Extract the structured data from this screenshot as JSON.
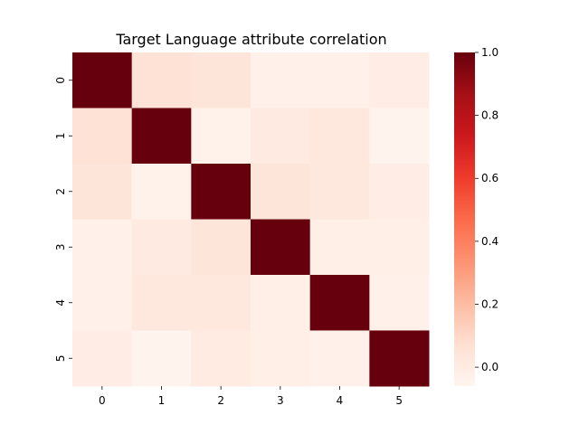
{
  "chart_data": {
    "type": "heatmap",
    "title": "Target Language attribute correlation",
    "xlabel": "",
    "ylabel": "",
    "x_labels": [
      "0",
      "1",
      "2",
      "3",
      "4",
      "5"
    ],
    "y_labels": [
      "0",
      "1",
      "2",
      "3",
      "4",
      "5"
    ],
    "values": [
      [
        1.0,
        0.06,
        0.04,
        -0.03,
        -0.03,
        -0.01
      ],
      [
        0.06,
        1.0,
        -0.04,
        0.01,
        0.03,
        -0.05
      ],
      [
        0.04,
        -0.04,
        1.0,
        0.04,
        0.02,
        -0.01
      ],
      [
        -0.03,
        0.01,
        0.04,
        1.0,
        -0.02,
        -0.02
      ],
      [
        -0.03,
        0.03,
        0.02,
        -0.02,
        1.0,
        -0.03
      ],
      [
        -0.01,
        -0.05,
        0.0,
        -0.02,
        -0.03,
        1.0
      ]
    ],
    "colormap": "Reds",
    "vmin": -0.06,
    "vmax": 1.0,
    "colorbar_ticks": [
      "0.0",
      "0.2",
      "0.4",
      "0.6",
      "0.8",
      "1.0"
    ],
    "grid": false,
    "colorbar_position": "right"
  }
}
